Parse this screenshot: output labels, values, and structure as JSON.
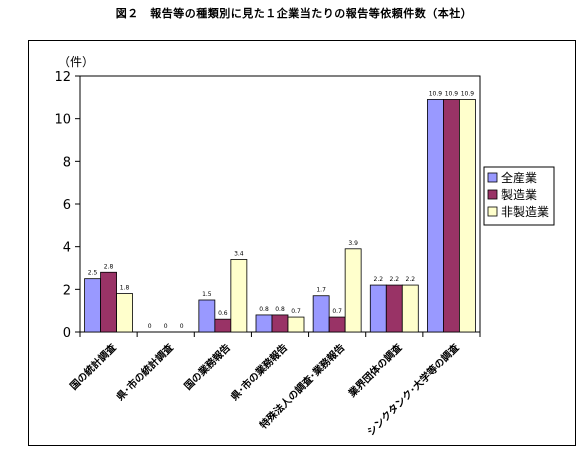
{
  "title": "図２　報告等の種類別に見た１企業当たりの報告等依頼件数（本社）",
  "chart_data": {
    "type": "bar",
    "ylabel": "（件）",
    "ylim": [
      0,
      12
    ],
    "yticks": [
      0,
      2,
      4,
      6,
      8,
      10,
      12
    ],
    "grid": false,
    "legend_position": "right",
    "categories": [
      "国の統計調査",
      "県･市の統計調査",
      "国の業務報告",
      "県･市の業務報告",
      "特殊法人の調査･業務報告",
      "業界団体の調査",
      "シンクタンク･大学等の調査"
    ],
    "series": [
      {
        "name": "全産業",
        "color": "#9999ff",
        "values": [
          2.5,
          0,
          1.5,
          0.8,
          1.7,
          2.2,
          10.9
        ],
        "labels": [
          "2.5",
          "0",
          "1.5",
          "0.8",
          "1.7",
          "2.2",
          "10.9"
        ]
      },
      {
        "name": "製造業",
        "color": "#993366",
        "values": [
          2.8,
          0,
          0.6,
          0.8,
          0.7,
          2.2,
          10.9
        ],
        "labels": [
          "2.8",
          "0",
          "0.6",
          "0.8",
          "0.7",
          "2.2",
          "10.9"
        ]
      },
      {
        "name": "非製造業",
        "color": "#ffffcc",
        "values": [
          1.8,
          0,
          3.4,
          0.7,
          3.9,
          2.2,
          10.9
        ],
        "labels": [
          "1.8",
          "0",
          "3.4",
          "0.7",
          "3.9",
          "2.2",
          "10.9"
        ]
      }
    ]
  }
}
